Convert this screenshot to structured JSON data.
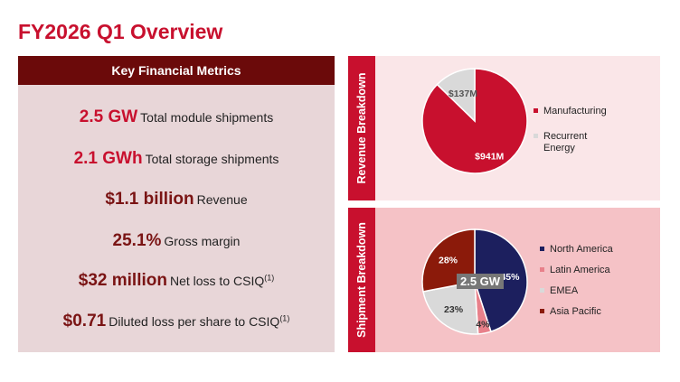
{
  "title": "FY2026 Q1 Overview",
  "metrics": {
    "header": "Key Financial Metrics",
    "items": [
      {
        "value": "2.5 GW",
        "label": "Total module shipments",
        "sup": "",
        "color": "#c8102e"
      },
      {
        "value": "2.1 GWh",
        "label": "Total storage shipments",
        "sup": "",
        "color": "#c8102e"
      },
      {
        "value": "$1.1 billion",
        "label": "Revenue",
        "sup": "",
        "color": "#7a1414"
      },
      {
        "value": "25.1%",
        "label": "Gross margin",
        "sup": "",
        "color": "#7a1414"
      },
      {
        "value": "$32 million",
        "label": "Net loss to CSIQ",
        "sup": "(1)",
        "color": "#7a1414"
      },
      {
        "value": "$0.71",
        "label": "Diluted loss per share to CSIQ",
        "sup": "(1)",
        "color": "#7a1414"
      }
    ]
  },
  "revenue_panel": {
    "label": "Revenue Breakdown"
  },
  "shipment_panel": {
    "label": "Shipment Breakdown",
    "center_label": "2.5 GW"
  },
  "chart_data": [
    {
      "type": "pie",
      "title": "Revenue Breakdown",
      "categories": [
        "Manufacturing",
        "Recurrent Energy"
      ],
      "values": [
        941,
        137
      ],
      "data_labels": [
        "$941M",
        "$137M"
      ],
      "colors": [
        "#c8102e",
        "#d9d9d9"
      ],
      "legend": "right"
    },
    {
      "type": "pie",
      "title": "Shipment Breakdown",
      "categories": [
        "North America",
        "Latin America",
        "EMEA",
        "Asia Pacific"
      ],
      "values": [
        45,
        4,
        23,
        28
      ],
      "data_labels": [
        "45%",
        "4%",
        "23%",
        "28%"
      ],
      "colors": [
        "#1c1f5e",
        "#e8808a",
        "#d9d9d9",
        "#8b1a0a"
      ],
      "legend": "right"
    }
  ]
}
